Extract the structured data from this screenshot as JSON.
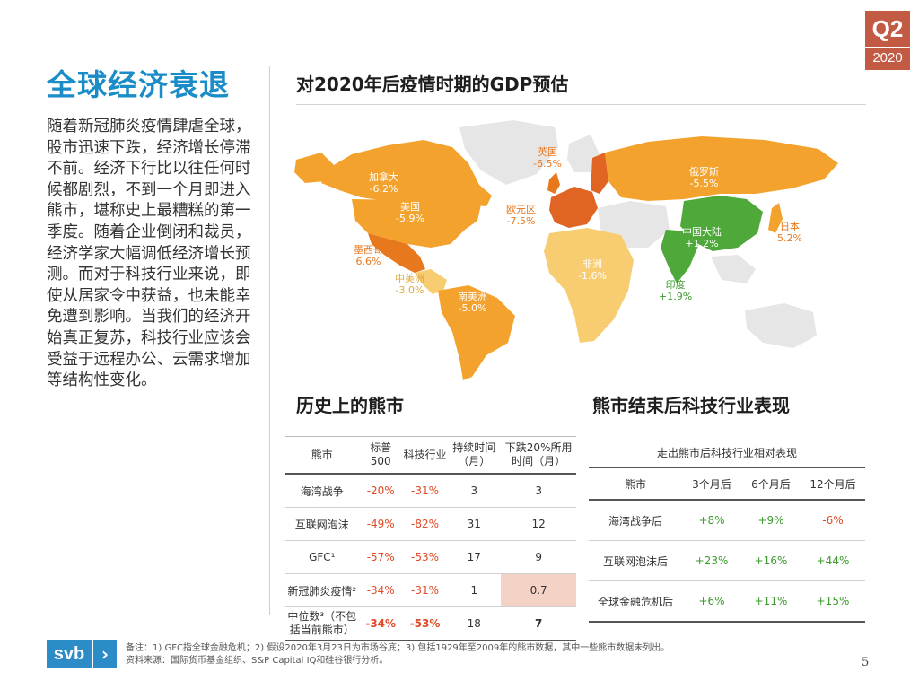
{
  "badge": {
    "quarter": "Q2",
    "year": "2020"
  },
  "page_title": "全球经济衰退",
  "body_text": "随着新冠肺炎疫情肆虐全球，股市迅速下跌，经济增长停滞不前。经济下行比以往任何时候都剧烈，不到一个月即进入熊市，堪称史上最糟糕的第一季度。随着企业倒闭和裁员，经济学家大幅调低经济增长预测。而对于科技行业来说，即使从居家令中获益，也未能幸免遭到影响。当我们的经济开始真正复苏，科技行业应该会受益于远程办公、云需求增加等结构性变化。",
  "map": {
    "title": "对2020年后疫情时期的GDP预估",
    "colors": {
      "dark_orange": "#e8781e",
      "orange": "#f3a32d",
      "light": "#f8cd72",
      "red": "#e06524",
      "green": "#4ea93a",
      "gray": "#e6e6e6"
    },
    "regions": [
      {
        "name": "英国",
        "value": "-6.5%"
      },
      {
        "name": "加拿大",
        "value": "-6.2%"
      },
      {
        "name": "美国",
        "value": "-5.9%"
      },
      {
        "name": "欧元区",
        "value": "-7.5%"
      },
      {
        "name": "俄罗斯",
        "value": "-5.5%"
      },
      {
        "name": "中国大陆",
        "value": "+1.2%"
      },
      {
        "name": "日本",
        "value": "5.2%"
      },
      {
        "name": "墨西哥",
        "value": "6.6%"
      },
      {
        "name": "中美洲",
        "value": "-3.0%"
      },
      {
        "name": "非洲",
        "value": "-1.6%"
      },
      {
        "name": "南美洲",
        "value": "-5.0%"
      },
      {
        "name": "印度",
        "value": "+1.9%"
      }
    ]
  },
  "history": {
    "title": "历史上的熊市",
    "headers": [
      "熊市",
      "标普 500",
      "科技行业",
      "持续时间（月）",
      "下跌20%所用时间（月）"
    ],
    "rows": [
      [
        "海湾战争",
        "-20%",
        "-31%",
        "3",
        "3"
      ],
      [
        "互联网泡沫",
        "-49%",
        "-82%",
        "31",
        "12"
      ],
      [
        "GFC¹",
        "-57%",
        "-53%",
        "17",
        "9"
      ],
      [
        "新冠肺炎疫情²",
        "-34%",
        "-31%",
        "1",
        "0.7"
      ],
      [
        "中位数³（不包括当前熊市）",
        "-34%",
        "-53%",
        "18",
        "7"
      ]
    ]
  },
  "performance": {
    "title": "熊市结束后科技行业表现",
    "caption": "走出熊市后科技行业相对表现",
    "headers": [
      "熊市",
      "3个月后",
      "6个月后",
      "12个月后"
    ],
    "rows": [
      [
        "海湾战争后",
        "+8%",
        "+9%",
        "-6%"
      ],
      [
        "互联网泡沫后",
        "+23%",
        "+16%",
        "+44%"
      ],
      [
        "全球金融危机后",
        "+6%",
        "+11%",
        "+15%"
      ]
    ]
  },
  "logo_text": "svb",
  "footnote_1": "备注：1) GFC指全球金融危机；2) 假设2020年3月23日为市场谷底；3) 包括1929年至2009年的熊市数据，其中一些熊市数据未列出。",
  "footnote_2": "资料来源：国际货币基金组织、S&P Capital IQ和硅谷银行分析。",
  "page_number": "5"
}
